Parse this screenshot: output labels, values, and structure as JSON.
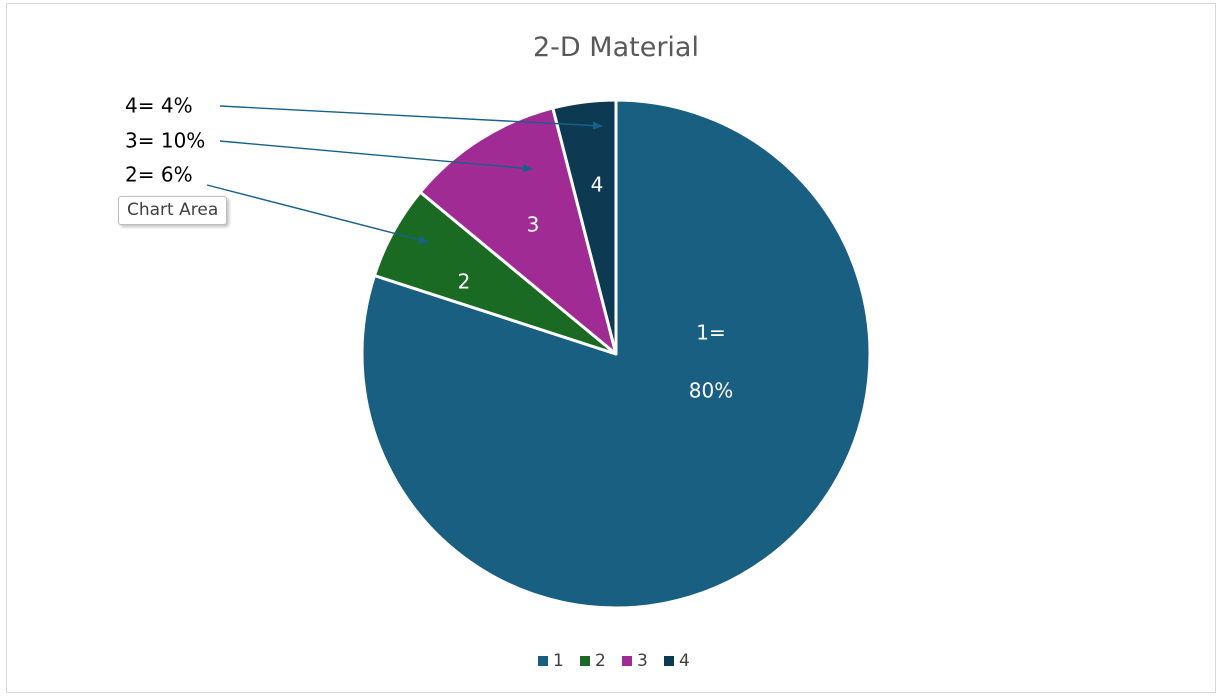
{
  "chart_data": {
    "type": "pie",
    "title": "2-D Material",
    "categories": [
      "1",
      "2",
      "3",
      "4"
    ],
    "values": [
      80,
      6,
      10,
      4
    ],
    "colors": [
      "#185f82",
      "#1b6a24",
      "#a02b94",
      "#0d3a52"
    ],
    "slice_labels": [
      [
        "1=",
        "80%"
      ],
      [
        "2"
      ],
      [
        "3"
      ],
      [
        "4"
      ]
    ],
    "callouts": [
      {
        "text": "4= 4%",
        "category": "4"
      },
      {
        "text": "3= 10%",
        "category": "3"
      },
      {
        "text": "2= 6%",
        "category": "2"
      }
    ],
    "legend": {
      "position": "bottom",
      "entries": [
        "1",
        "2",
        "3",
        "4"
      ]
    },
    "line_color": "#15618a"
  },
  "tooltip": {
    "text": "Chart Area"
  }
}
